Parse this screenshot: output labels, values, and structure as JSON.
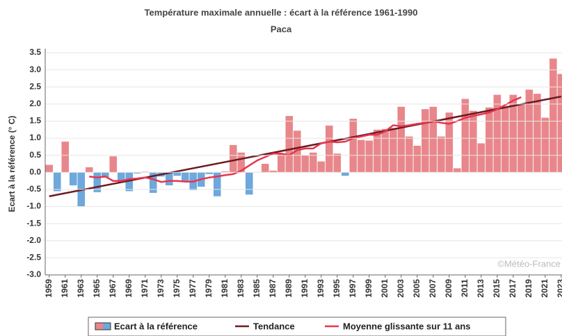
{
  "chart_data": {
    "type": "bar",
    "title": "Température maximale annuelle : écart à la référence 1961-1990",
    "subtitle": "Paca",
    "y_label": "Ecart à la référence (° C)",
    "watermark": "©Météo-France",
    "x": [
      1959,
      1960,
      1961,
      1962,
      1963,
      1964,
      1965,
      1966,
      1967,
      1968,
      1969,
      1970,
      1971,
      1972,
      1973,
      1974,
      1975,
      1976,
      1977,
      1978,
      1979,
      1980,
      1981,
      1982,
      1983,
      1984,
      1985,
      1986,
      1987,
      1988,
      1989,
      1990,
      1991,
      1992,
      1993,
      1994,
      1995,
      1996,
      1997,
      1998,
      1999,
      2000,
      2001,
      2002,
      2003,
      2004,
      2005,
      2006,
      2007,
      2008,
      2009,
      2010,
      2011,
      2012,
      2013,
      2014,
      2015,
      2016,
      2017,
      2018,
      2019,
      2020,
      2021,
      2022,
      2023
    ],
    "xlim": [
      1958.5,
      2023.1
    ],
    "xticks": [
      1959,
      1961,
      1963,
      1965,
      1967,
      1969,
      1971,
      1973,
      1975,
      1977,
      1979,
      1981,
      1983,
      1985,
      1987,
      1989,
      1991,
      1993,
      1995,
      1997,
      1999,
      2001,
      2003,
      2005,
      2007,
      2009,
      2011,
      2013,
      2015,
      2017,
      2019,
      2021,
      2023
    ],
    "ylim": [
      -3,
      3.5
    ],
    "yticks": [
      3.5,
      {
        "value": 3,
        "label": "3.0"
      },
      2.5,
      {
        "value": 2,
        "label": "2.0"
      },
      1.5,
      {
        "value": 1,
        "label": "1.0"
      },
      0.5,
      {
        "value": 0,
        "label": "0.0"
      },
      -0.5,
      {
        "value": -1,
        "label": "-1.0"
      },
      -1.5,
      {
        "value": -2,
        "label": "-2.0"
      },
      -2.5,
      {
        "value": -3,
        "label": "-3.0"
      }
    ],
    "grid": true,
    "positive_color": "#e8878b",
    "negative_color": "#6ea8dc",
    "series": [
      {
        "name": "Ecart à la référence",
        "values": [
          0.22,
          -0.55,
          0.9,
          -0.38,
          -1.0,
          0.15,
          -0.58,
          -0.15,
          0.47,
          -0.25,
          -0.55,
          -0.03,
          0.02,
          -0.6,
          -0.12,
          -0.38,
          -0.1,
          -0.27,
          -0.52,
          -0.42,
          -0.05,
          -0.7,
          0.03,
          0.8,
          0.58,
          -0.65,
          0.01,
          0.25,
          0.05,
          0.55,
          1.65,
          1.22,
          0.5,
          0.58,
          0.32,
          1.37,
          0.55,
          -0.1,
          1.57,
          0.95,
          0.93,
          1.25,
          1.27,
          1.3,
          1.92,
          1.05,
          0.78,
          1.85,
          1.92,
          1.05,
          1.75,
          0.12,
          2.15,
          1.8,
          0.85,
          1.9,
          2.27,
          1.9,
          2.27,
          2.0,
          2.42,
          2.3,
          1.6,
          3.33,
          2.88
        ]
      },
      {
        "name": "Tendance",
        "color": "#6b1a1f",
        "x": [
          1959,
          2023
        ],
        "values": [
          -0.7,
          2.22
        ]
      },
      {
        "name": "Moyenne glissante sur 11 ans",
        "color": "#e8344e",
        "values": [
          null,
          null,
          null,
          null,
          null,
          -0.12,
          -0.15,
          -0.12,
          -0.25,
          -0.25,
          -0.2,
          -0.18,
          -0.15,
          -0.2,
          -0.28,
          -0.25,
          -0.25,
          -0.27,
          -0.27,
          -0.2,
          -0.15,
          -0.12,
          -0.08,
          -0.05,
          0.05,
          0.2,
          0.35,
          0.45,
          0.55,
          0.55,
          0.5,
          0.65,
          0.7,
          0.7,
          0.85,
          0.9,
          0.88,
          0.9,
          1.0,
          1.05,
          1.1,
          1.1,
          1.2,
          1.38,
          1.35,
          1.38,
          1.42,
          1.45,
          1.5,
          1.45,
          1.42,
          1.5,
          1.6,
          1.65,
          1.7,
          1.75,
          1.85,
          1.97,
          2.1,
          2.2,
          null,
          null,
          null,
          null,
          null
        ]
      }
    ]
  }
}
